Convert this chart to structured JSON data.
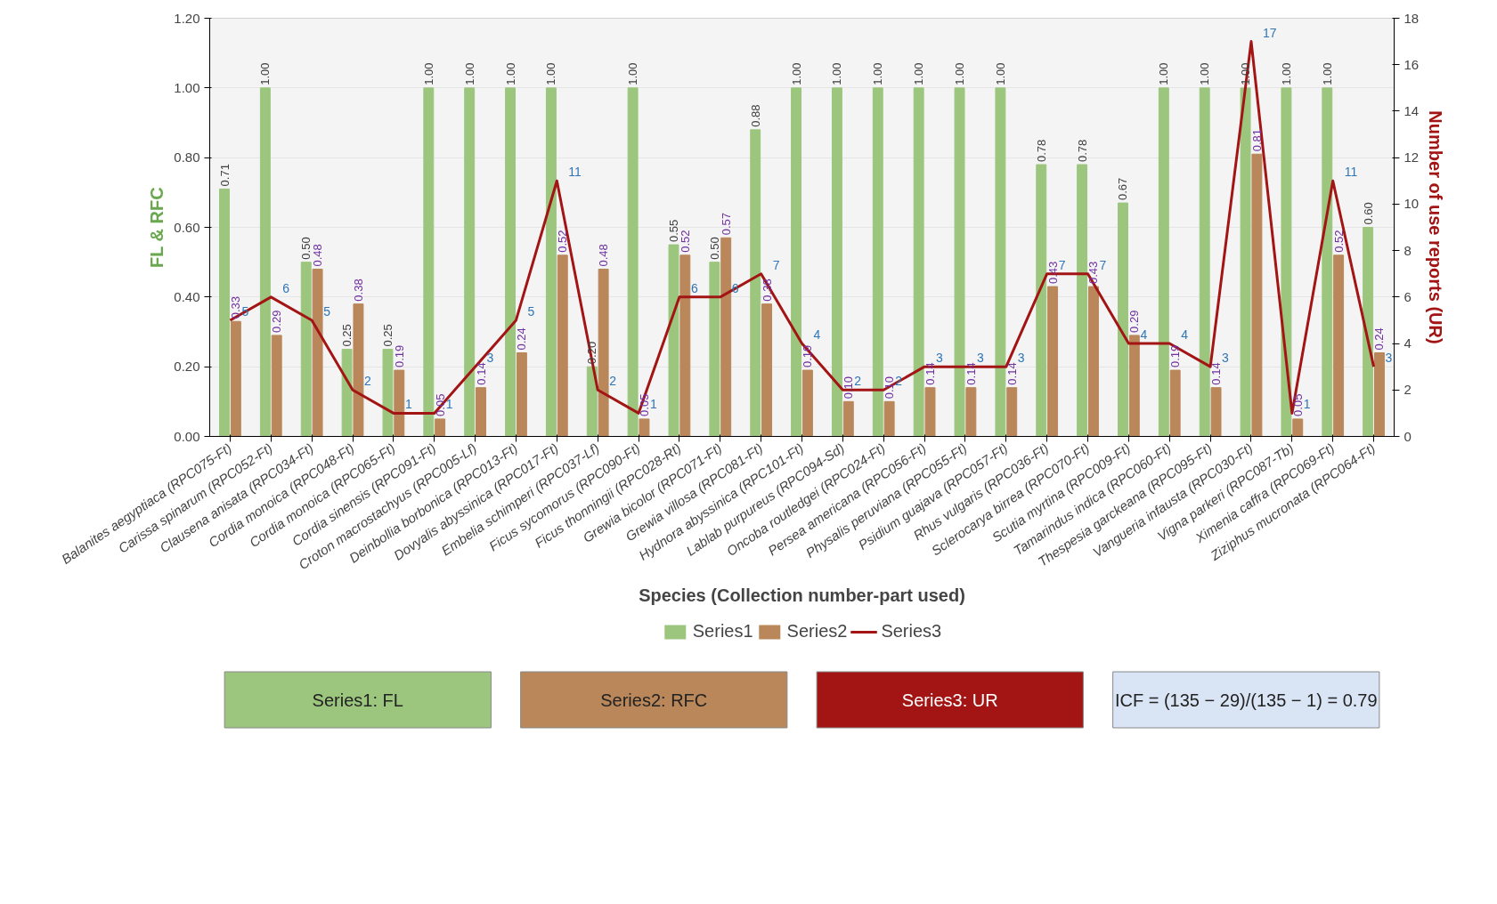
{
  "chart_data": {
    "type": "bar",
    "xlabel": "Species (Collection number-part used)",
    "ylabel": "FL & RFC",
    "y2label": "Number of use reports (UR)",
    "categories": [
      "Balanites aegyptiaca (RPC075-Ft)",
      "Carissa spinarum (RPC052-Ft)",
      "Clausena anisata (RPC034-Ft)",
      "Cordia monoica (RPC048-Ft)",
      "Cordia monoica (RPC065-Ft)",
      "Cordia sinensis (RPC091-Ft)",
      "Croton macrostachyus (RPC005-Lf)",
      "Deinbollia borbonica (RPC013-Ft)",
      "Dovyalis abyssinica (RPC017-Ft)",
      "Embelia schimperi (RPC037-Lf)",
      "Ficus sycomorus (RPC090-Ft)",
      "Ficus thonningii (RPC028-Rt)",
      "Grewia bicolor (RPC071-Ft)",
      "Grewia villosa (RPC081-Ft)",
      "Hydnora abyssinica (RPC101-Ft)",
      "Lablab purpureus (RPC094-Sd)",
      "Oncoba routledgei (RPC024-Ft)",
      "Persea americana (RPC056-Ft)",
      "Physalis peruviana (RPC055-Ft)",
      "Psidium guajava (RPC057-Ft)",
      "Rhus vulgaris (RPC036-Ft)",
      "Sclerocarya birrea (RPC070-Ft)",
      "Scutia myrtina (RPC009-Ft)",
      "Tamarindus indica (RPC060-Ft)",
      "Thespesia garckeana (RPC095-Ft)",
      "Vangueria infausta (RPC030-Ft)",
      "Vigna parkeri (RPC087-Tb)",
      "Ximenia caffra (RPC069-Ft)",
      "Ziziphus mucronata (RPC064-Ft)"
    ],
    "series": [
      {
        "name": "Series1",
        "color": "#9cc67e",
        "values": [
          0.71,
          1.0,
          0.5,
          0.25,
          0.25,
          1.0,
          1.0,
          1.0,
          1.0,
          0.2,
          1.0,
          0.55,
          0.5,
          0.88,
          1.0,
          1.0,
          1.0,
          1.0,
          1.0,
          1.0,
          0.78,
          0.78,
          0.67,
          1.0,
          1.0,
          1.0,
          1.0,
          1.0,
          0.6
        ],
        "value_labels": [
          "0.71",
          "1.00",
          "0.50",
          "0.25",
          "0.25",
          "1.00",
          "1.00",
          "1.00",
          "1.00",
          "0.20",
          "1.00",
          "0.55",
          "0.50",
          "0.88",
          "1.00",
          "1.00",
          "1.00",
          "1.00",
          "1.00",
          "1.00",
          "0.78",
          "0.78",
          "0.67",
          "1.00",
          "1.00",
          "1.00",
          "1.00",
          "1.00",
          "0.60"
        ]
      },
      {
        "name": "Series2",
        "color": "#b9875a",
        "values": [
          0.33,
          0.29,
          0.48,
          0.38,
          0.19,
          0.05,
          0.14,
          0.24,
          0.52,
          0.48,
          0.05,
          0.52,
          0.57,
          0.38,
          0.19,
          0.1,
          0.1,
          0.14,
          0.14,
          0.14,
          0.43,
          0.43,
          0.29,
          0.19,
          0.14,
          0.81,
          0.05,
          0.52,
          0.24
        ],
        "value_labels": [
          "0.33",
          "0.29",
          "0.48",
          "0.38",
          "0.19",
          "0.05",
          "0.14",
          "0.24",
          "0.52",
          "0.48",
          "0.05",
          "0.52",
          "0.57",
          "0.38",
          "0.19",
          "0.10",
          "0.10",
          "0.14",
          "0.14",
          "0.14",
          "0.43",
          "0.43",
          "0.29",
          "0.19",
          "0.14",
          "0.81",
          "0.05",
          "0.52",
          "0.24"
        ]
      },
      {
        "name": "Series3",
        "type": "line",
        "axis": "y2",
        "color": "#a31515",
        "values": [
          5,
          6,
          5,
          2,
          1,
          1,
          3,
          5,
          11,
          2,
          1,
          6,
          6,
          7,
          4,
          2,
          2,
          3,
          3,
          3,
          7,
          7,
          4,
          4,
          3,
          17,
          1,
          11,
          3
        ],
        "value_labels": [
          "5",
          "6",
          "5",
          "2",
          "1",
          "1",
          "3",
          "5",
          "11",
          "2",
          "1",
          "6",
          "6",
          "7",
          "4",
          "2",
          "2",
          "3",
          "3",
          "3",
          "7",
          "7",
          "4",
          "4",
          "3",
          "17",
          "1",
          "11",
          "3"
        ]
      }
    ],
    "ylim": [
      0,
      1.2
    ],
    "yticks": [
      {
        "value": 0,
        "label": "0.00"
      },
      {
        "value": 0.2,
        "label": "0.20"
      },
      {
        "value": 0.4,
        "label": "0.40"
      },
      {
        "value": 0.6,
        "label": "0.60"
      },
      {
        "value": 0.8,
        "label": "0.80"
      },
      {
        "value": 1.0,
        "label": "1.00"
      },
      {
        "value": 1.2,
        "label": "1.20"
      }
    ],
    "y2lim": [
      0,
      18
    ],
    "y2ticks": [
      0,
      2,
      4,
      6,
      8,
      10,
      12,
      14,
      16,
      18
    ],
    "grid": "y",
    "legend": "bottom",
    "line_style": "solid",
    "annotations": [
      "Series1: FL",
      "Series2: RFC",
      "Series3: UR",
      "ICF = (135 − 29)/(135 − 1) = 0.79"
    ]
  }
}
